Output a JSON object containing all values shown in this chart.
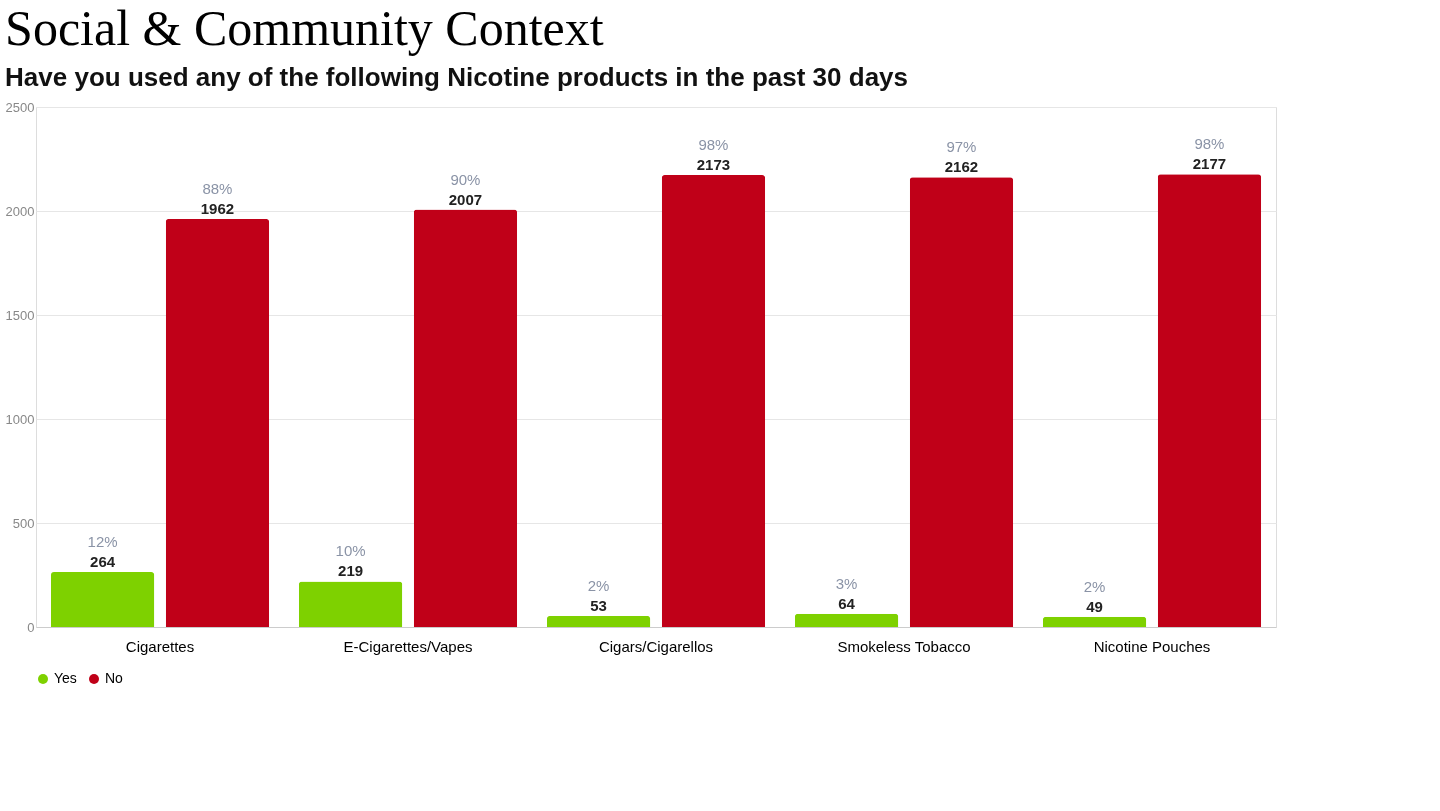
{
  "chart_data": {
    "type": "bar",
    "title": "Social & Community Context",
    "subtitle": "Have you used any of the following Nicotine products in the past 30 days",
    "categories": [
      "Cigarettes",
      "E-Cigarettes/Vapes",
      "Cigars/Cigarellos",
      "Smokeless Tobacco",
      "Nicotine Pouches"
    ],
    "series": [
      {
        "name": "Yes",
        "color": "#7ed100",
        "values": [
          264,
          219,
          53,
          64,
          49
        ]
      },
      {
        "name": "No",
        "color": "#c00018",
        "values": [
          1962,
          2007,
          2173,
          2162,
          2177
        ]
      }
    ],
    "ylim": [
      0,
      2500
    ],
    "yticks": [
      0,
      500,
      1000,
      1500,
      2000,
      2500
    ],
    "grid": "y",
    "legend": "bottom",
    "data_labels": true,
    "annotations": [
      "12%",
      "10%",
      "2%",
      "3%",
      "2%",
      "88%",
      "90%",
      "98%",
      "97%",
      "98%"
    ]
  }
}
